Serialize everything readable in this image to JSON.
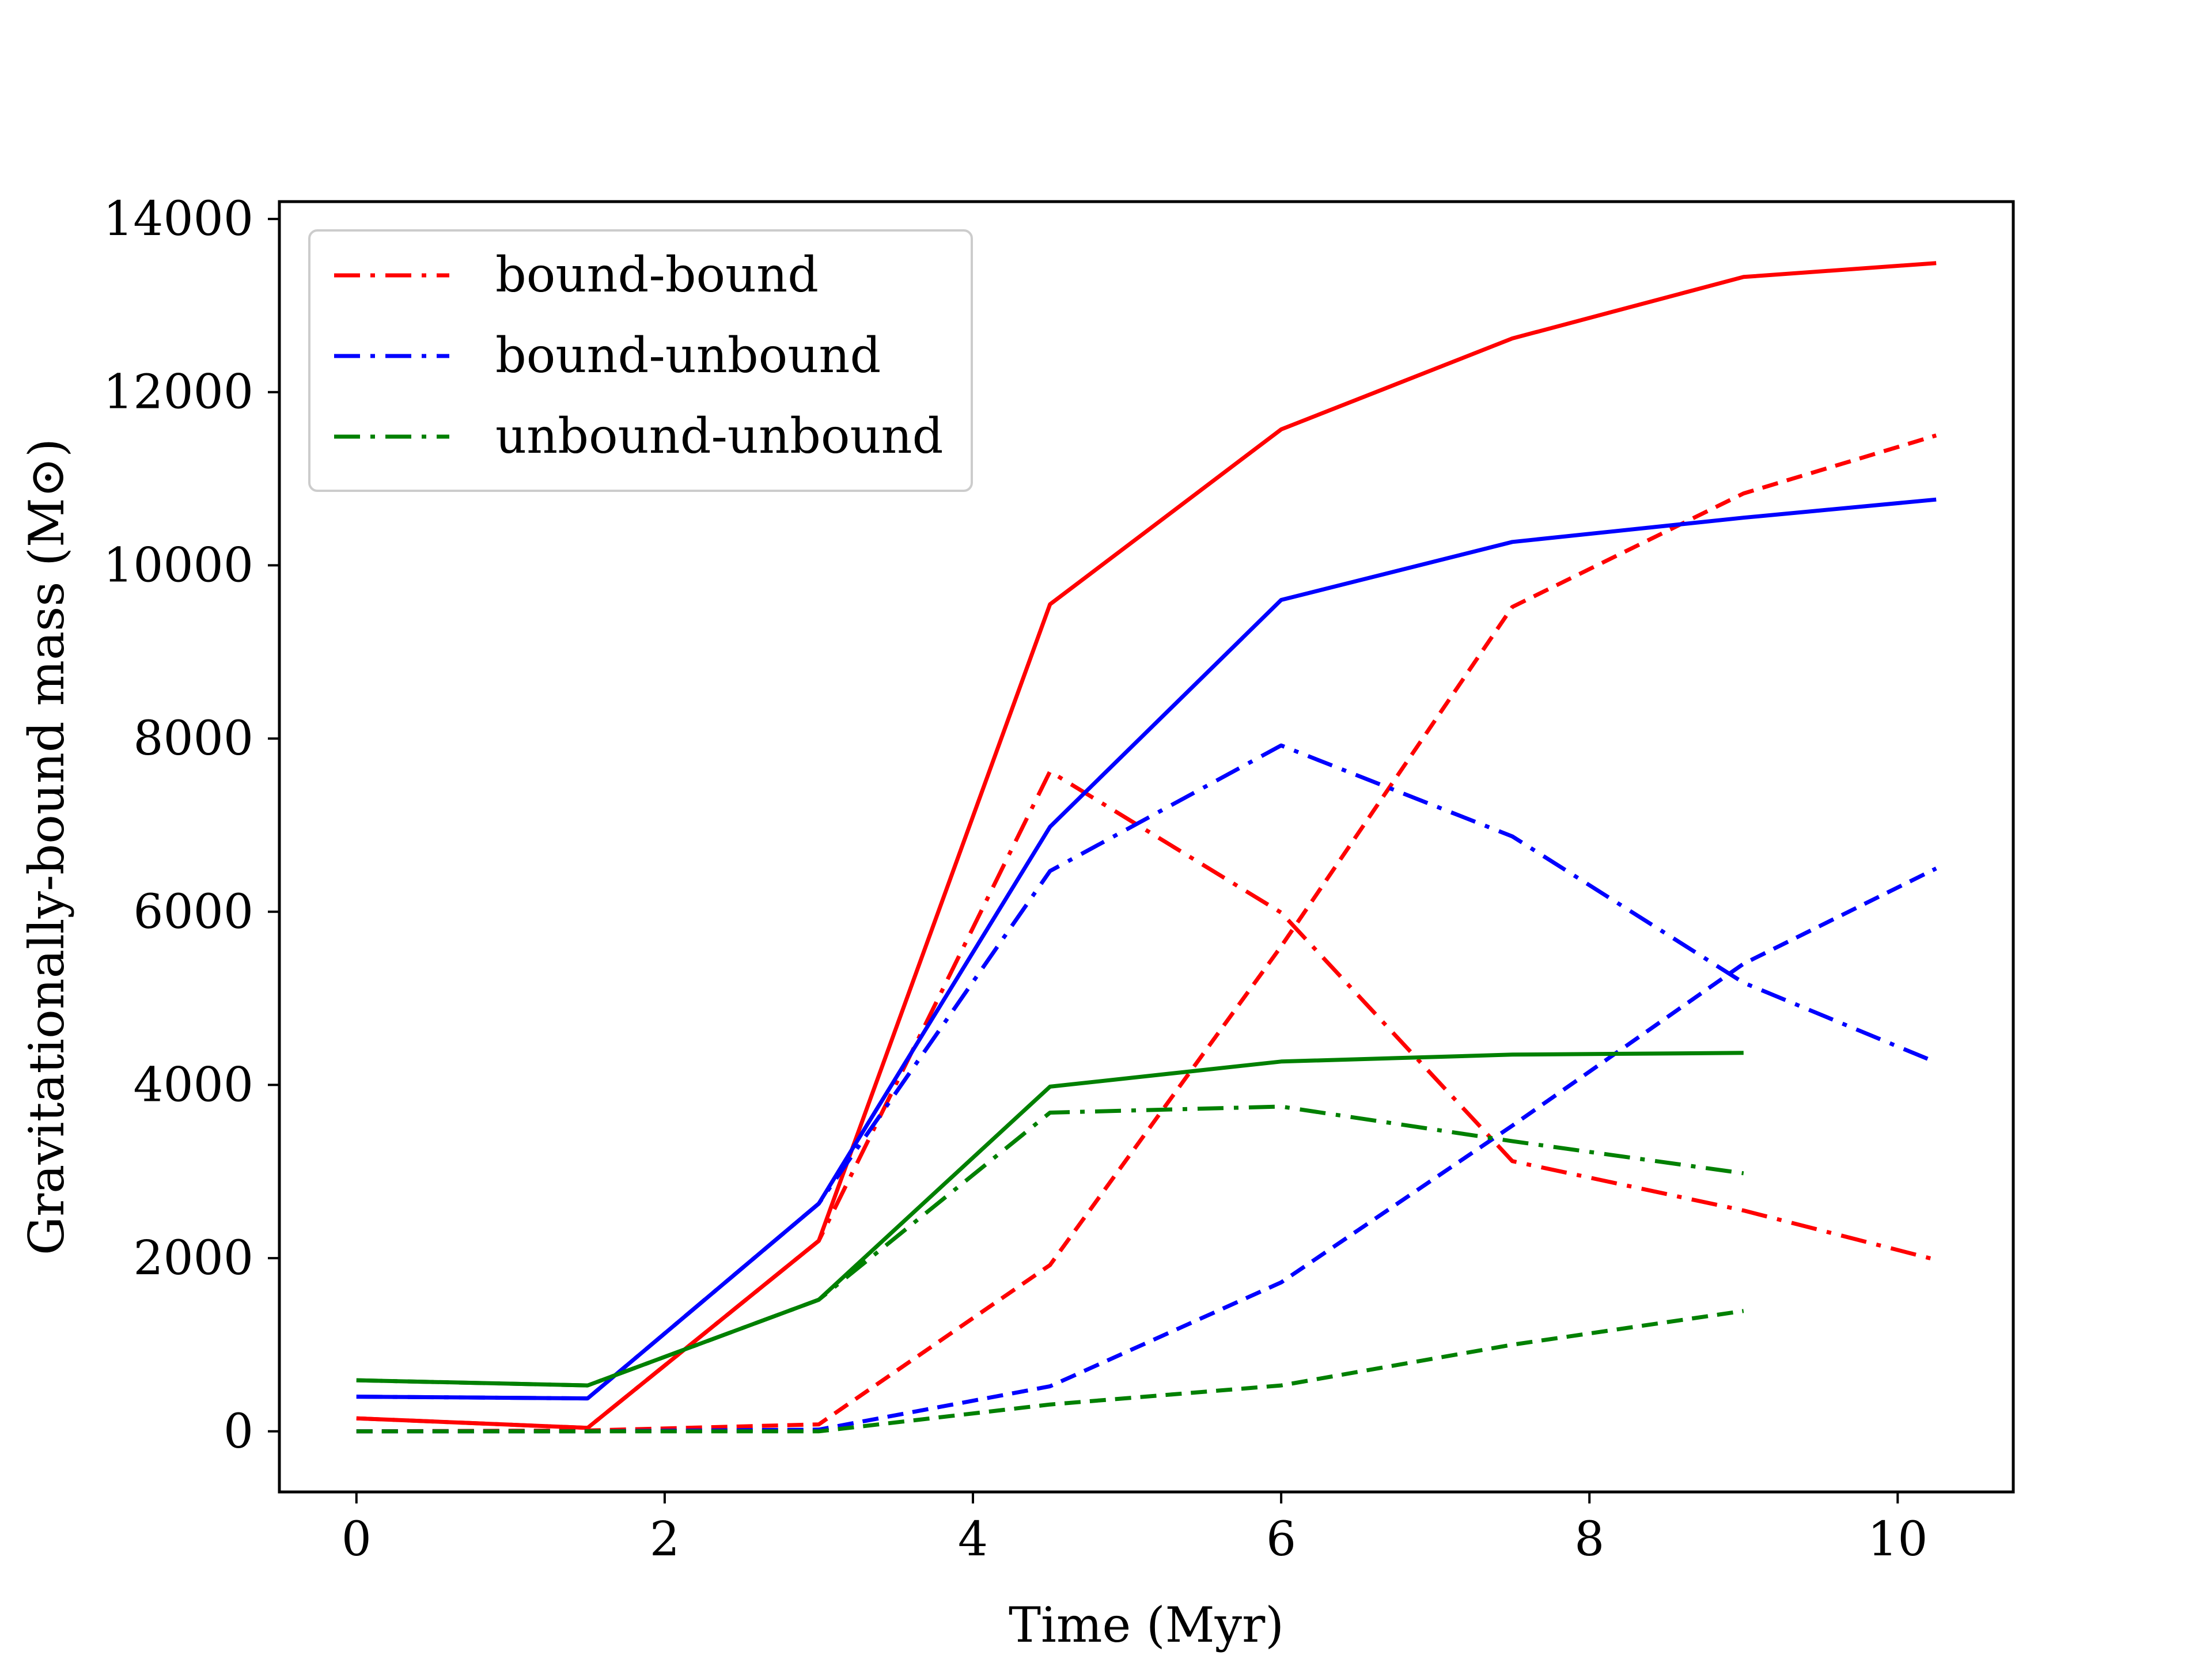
{
  "chart_data": {
    "type": "line",
    "title": "",
    "xlabel": "Time (Myr)",
    "ylabel": "Gravitationally-bound mass (M⊙)",
    "xlim": [
      -0.5,
      10.75
    ],
    "ylim": [
      -700,
      14200
    ],
    "xticks": [
      0,
      2,
      4,
      6,
      8,
      10
    ],
    "yticks": [
      0,
      2000,
      4000,
      6000,
      8000,
      10000,
      12000,
      14000
    ],
    "xtick_labels": [
      "0",
      "2",
      "4",
      "6",
      "8",
      "10"
    ],
    "ytick_labels": [
      "0",
      "2000",
      "4000",
      "6000",
      "8000",
      "10000",
      "12000",
      "14000"
    ],
    "grid": false,
    "legend": {
      "location": "top-left",
      "entries": [
        {
          "label": "bound-bound",
          "color": "#ff0000",
          "style": "dashdot"
        },
        {
          "label": "bound-unbound",
          "color": "#0000ff",
          "style": "dashdot"
        },
        {
          "label": "unbound-unbound",
          "color": "#008000",
          "style": "dashdot"
        }
      ]
    },
    "series": [
      {
        "name": "red-solid",
        "color": "#ff0000",
        "style": "solid",
        "x": [
          0,
          1.5,
          3,
          4.5,
          6,
          7.5,
          9,
          10.25
        ],
        "y": [
          150,
          40,
          2200,
          9550,
          11570,
          12620,
          13330,
          13490
        ]
      },
      {
        "name": "red-dashed",
        "color": "#ff0000",
        "style": "dashed",
        "x": [
          0,
          1.5,
          3,
          4.5,
          6,
          7.5,
          9,
          10.25
        ],
        "y": [
          0,
          10,
          80,
          1920,
          5600,
          9520,
          10830,
          11500
        ]
      },
      {
        "name": "red-dashdot",
        "color": "#ff0000",
        "style": "dashdot",
        "x": [
          0,
          1.5,
          3,
          4.5,
          6,
          7.5,
          9,
          10.25
        ],
        "y": [
          150,
          40,
          2200,
          7620,
          5990,
          3120,
          2550,
          1980
        ]
      },
      {
        "name": "blue-solid",
        "color": "#0000ff",
        "style": "solid",
        "x": [
          0,
          1.5,
          3,
          4.5,
          6,
          7.5,
          9,
          10.25
        ],
        "y": [
          400,
          380,
          2630,
          6980,
          9600,
          10270,
          10550,
          10760
        ]
      },
      {
        "name": "blue-dashed",
        "color": "#0000ff",
        "style": "dashed",
        "x": [
          0,
          1.5,
          3,
          4.5,
          6,
          7.5,
          9,
          10.25
        ],
        "y": [
          0,
          0,
          20,
          520,
          1720,
          3530,
          5400,
          6500
        ]
      },
      {
        "name": "blue-dashdot",
        "color": "#0000ff",
        "style": "dashdot",
        "x": [
          0,
          1.5,
          3,
          4.5,
          6,
          7.5,
          9,
          10.25
        ],
        "y": [
          400,
          380,
          2630,
          6470,
          7920,
          6870,
          5180,
          4260
        ]
      },
      {
        "name": "green-solid",
        "color": "#008000",
        "style": "solid",
        "x": [
          0,
          1.5,
          3,
          4.5,
          6,
          7.5,
          9
        ],
        "y": [
          590,
          530,
          1520,
          3980,
          4270,
          4350,
          4370
        ]
      },
      {
        "name": "green-dashed",
        "color": "#008000",
        "style": "dashed",
        "x": [
          0,
          1.5,
          3,
          4.5,
          6,
          7.5,
          9
        ],
        "y": [
          0,
          0,
          0,
          310,
          530,
          1000,
          1390
        ]
      },
      {
        "name": "green-dashdot",
        "color": "#008000",
        "style": "dashdot",
        "x": [
          0,
          1.5,
          3,
          4.5,
          6,
          7.5,
          9
        ],
        "y": [
          590,
          530,
          1520,
          3680,
          3750,
          3350,
          2980
        ]
      }
    ]
  }
}
